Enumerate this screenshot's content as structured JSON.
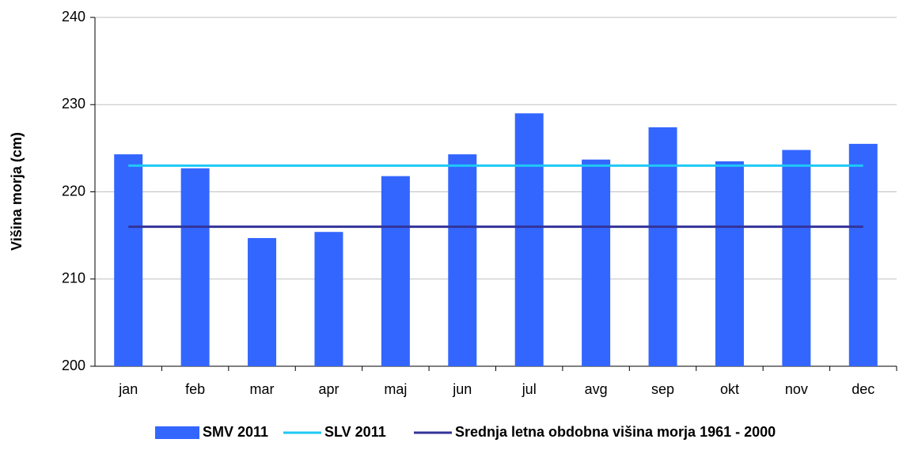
{
  "chart_data": {
    "type": "bar",
    "y_label": "Višina morja (cm)",
    "categories": [
      "jan",
      "feb",
      "mar",
      "apr",
      "maj",
      "jun",
      "jul",
      "avg",
      "sep",
      "okt",
      "nov",
      "dec"
    ],
    "series": [
      {
        "name": "SMV 2011",
        "type": "bar",
        "color": "#3366ff",
        "values": [
          224.3,
          222.7,
          214.7,
          215.4,
          221.8,
          224.3,
          229.0,
          223.7,
          227.4,
          223.5,
          224.8,
          225.5
        ]
      },
      {
        "name": "SLV 2011",
        "type": "line",
        "color": "#1ec8f5",
        "values": [
          223.0,
          223.0,
          223.0,
          223.0,
          223.0,
          223.0,
          223.0,
          223.0,
          223.0,
          223.0,
          223.0,
          223.0
        ]
      },
      {
        "name": "Srednja letna obdobna višina morja 1961 - 2000",
        "type": "line",
        "color": "#333399",
        "values": [
          216.0,
          216.0,
          216.0,
          216.0,
          216.0,
          216.0,
          216.0,
          216.0,
          216.0,
          216.0,
          216.0,
          216.0
        ]
      }
    ],
    "ylim": [
      200,
      240
    ],
    "yticks": [
      200,
      210,
      220,
      230,
      240
    ],
    "grid": true,
    "legend": "bottom"
  }
}
